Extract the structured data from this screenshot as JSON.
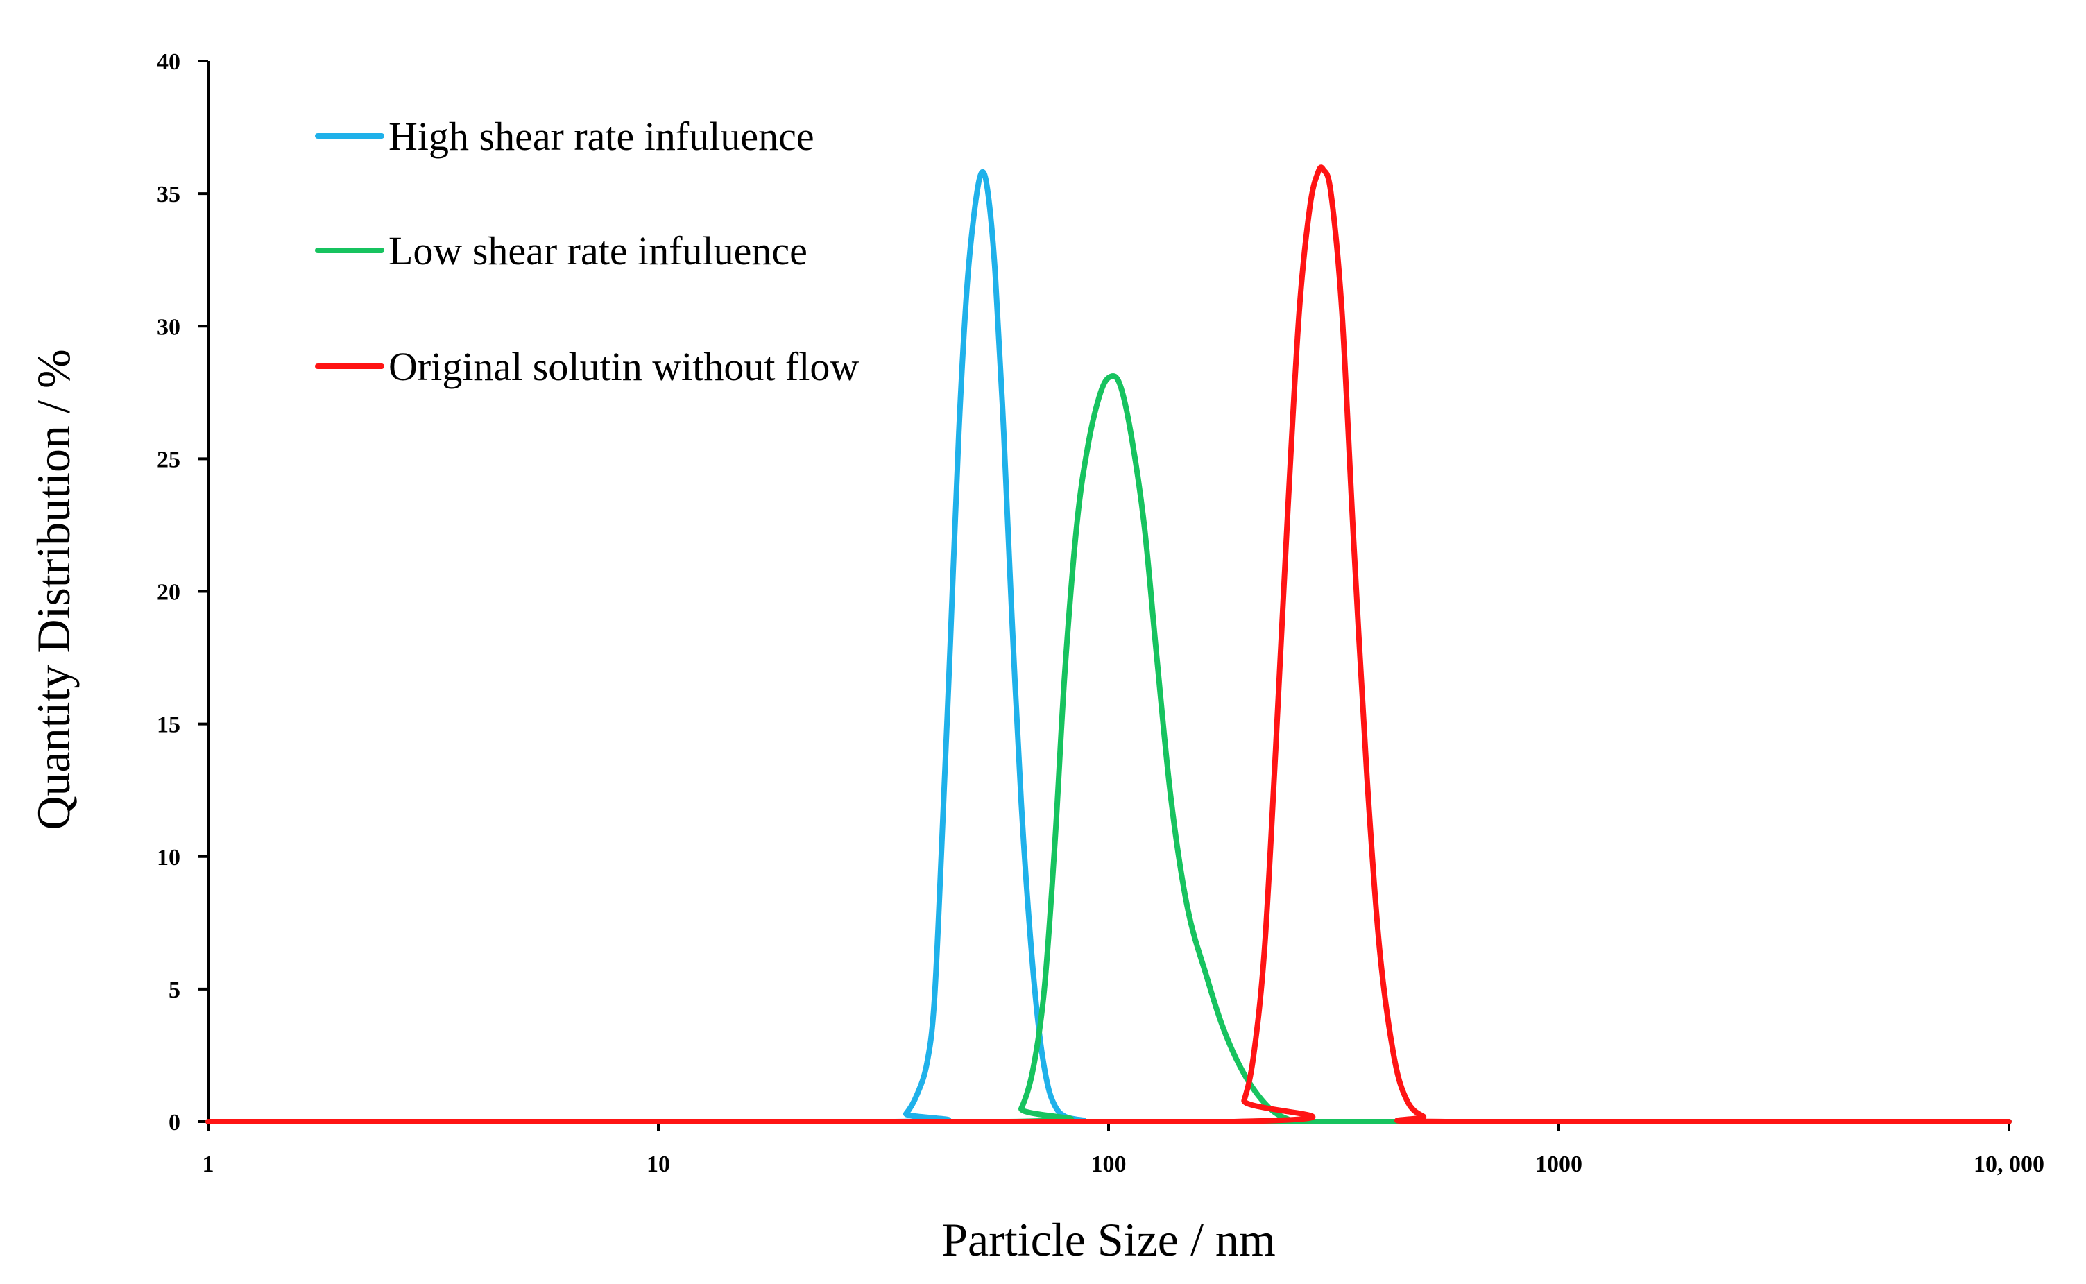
{
  "chart_data": {
    "type": "line",
    "title": "",
    "xlabel": "Particle Size / nm",
    "ylabel": "Quantity Distribution / %",
    "xscale": "log",
    "xlim": [
      1,
      10000
    ],
    "ylim": [
      0,
      40
    ],
    "x_ticks": [
      {
        "value": 1,
        "label": "1"
      },
      {
        "value": 10,
        "label": "10"
      },
      {
        "value": 100,
        "label": "100"
      },
      {
        "value": 1000,
        "label": "1000"
      },
      {
        "value": 10000,
        "label": "10, 000"
      }
    ],
    "y_ticks": [
      {
        "value": 0,
        "label": "0"
      },
      {
        "value": 5,
        "label": "5"
      },
      {
        "value": 10,
        "label": "10"
      },
      {
        "value": 15,
        "label": "15"
      },
      {
        "value": 20,
        "label": "20"
      },
      {
        "value": 25,
        "label": "25"
      },
      {
        "value": 30,
        "label": "30"
      },
      {
        "value": 35,
        "label": "35"
      },
      {
        "value": 40,
        "label": "40"
      }
    ],
    "grid": false,
    "legend_position": "top-left",
    "series": [
      {
        "name": "High shear rate infuluence",
        "color": "#1fb1ea",
        "points": [
          [
            1,
            0
          ],
          [
            33.5,
            0
          ],
          [
            35.5,
            0.3
          ],
          [
            37.5,
            1.0
          ],
          [
            39.5,
            2.2
          ],
          [
            41,
            4.5
          ],
          [
            42.5,
            10
          ],
          [
            44.5,
            18
          ],
          [
            46.5,
            26
          ],
          [
            48.5,
            31.5
          ],
          [
            50.5,
            34.5
          ],
          [
            52.3,
            35.8
          ],
          [
            54,
            35
          ],
          [
            56,
            32
          ],
          [
            58.5,
            26
          ],
          [
            61,
            19
          ],
          [
            64,
            12
          ],
          [
            67,
            7
          ],
          [
            70,
            3.5
          ],
          [
            73,
            1.5
          ],
          [
            76,
            0.6
          ],
          [
            80,
            0.2
          ],
          [
            88,
            0.05
          ],
          [
            95,
            0
          ],
          [
            10000,
            0
          ]
        ]
      },
      {
        "name": "Low shear rate infuluence",
        "color": "#17c35f",
        "points": [
          [
            1,
            0
          ],
          [
            60,
            0
          ],
          [
            64,
            0.5
          ],
          [
            68,
            2
          ],
          [
            72,
            5
          ],
          [
            76,
            10.5
          ],
          [
            80,
            17
          ],
          [
            85,
            22.5
          ],
          [
            90,
            25.5
          ],
          [
            96,
            27.5
          ],
          [
            101,
            28.1
          ],
          [
            106,
            27.8
          ],
          [
            112,
            26
          ],
          [
            120,
            22.5
          ],
          [
            128,
            17.5
          ],
          [
            138,
            12
          ],
          [
            150,
            8
          ],
          [
            165,
            5.5
          ],
          [
            180,
            3.5
          ],
          [
            200,
            1.8
          ],
          [
            225,
            0.6
          ],
          [
            250,
            0.1
          ],
          [
            280,
            0
          ],
          [
            10000,
            0
          ]
        ]
      },
      {
        "name": "Original solutin without flow",
        "color": "#ff1414",
        "points": [
          [
            1,
            0
          ],
          [
            190,
            0
          ],
          [
            200,
            0.8
          ],
          [
            210,
            2.5
          ],
          [
            222,
            6.5
          ],
          [
            235,
            14
          ],
          [
            250,
            23
          ],
          [
            265,
            30.5
          ],
          [
            280,
            34.5
          ],
          [
            292,
            35.8
          ],
          [
            300,
            35.9
          ],
          [
            312,
            35
          ],
          [
            330,
            30.5
          ],
          [
            350,
            22
          ],
          [
            375,
            13
          ],
          [
            400,
            6.5
          ],
          [
            430,
            2.5
          ],
          [
            460,
            0.8
          ],
          [
            500,
            0.2
          ],
          [
            560,
            0
          ],
          [
            10000,
            0
          ]
        ]
      }
    ]
  }
}
